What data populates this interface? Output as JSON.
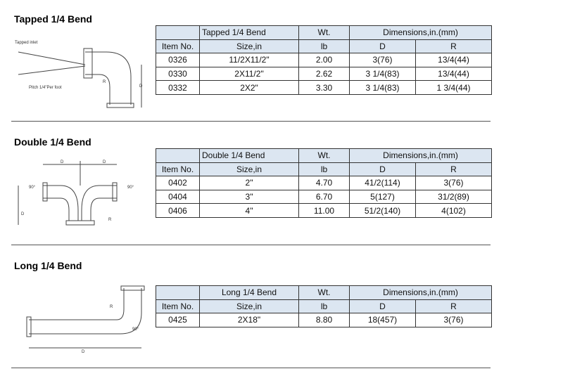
{
  "sections": [
    {
      "title": "Tapped 1/4 Bend",
      "drawing_labels": [
        "Tapped inlet",
        "Pitch 1/4\"Per foot",
        "R",
        "D"
      ],
      "table": {
        "header": [
          "Tapped 1/4 Bend",
          "Wt.",
          "Dimensions,in.(mm)"
        ],
        "subheader": [
          "Item No.",
          "Size,in",
          "lb",
          "D",
          "R"
        ],
        "rows": [
          [
            "0326",
            "11/2X11/2\"",
            "2.00",
            "3(76)",
            "13/4(44)"
          ],
          [
            "0330",
            "2X11/2\"",
            "2.62",
            "3 1/4(83)",
            "13/4(44)"
          ],
          [
            "0332",
            "2X2\"",
            "3.30",
            "3 1/4(83)",
            "1 3/4(44)"
          ]
        ]
      }
    },
    {
      "title": "Double 1/4 Bend",
      "drawing_labels": [
        "D",
        "D",
        "90°",
        "90°",
        "D",
        "R"
      ],
      "table": {
        "header": [
          "Double 1/4 Bend",
          "Wt.",
          "Dimensions,in.(mm)"
        ],
        "subheader": [
          "Item No.",
          "Size,in",
          "lb",
          "D",
          "R"
        ],
        "rows": [
          [
            "0402",
            "2\"",
            "4.70",
            "41/2(114)",
            "3(76)"
          ],
          [
            "0404",
            "3\"",
            "6.70",
            "5(127)",
            "31/2(89)"
          ],
          [
            "0406",
            "4\"",
            "11.00",
            "51/2(140)",
            "4(102)"
          ]
        ]
      }
    },
    {
      "title": "Long 1/4 Bend",
      "drawing_labels": [
        "R",
        "90°",
        "D"
      ],
      "table": {
        "header": [
          "Long 1/4 Bend",
          "Wt.",
          "Dimensions,in.(mm)"
        ],
        "subheader": [
          "Item No.",
          "Size,in",
          "lb",
          "D",
          "R"
        ],
        "rows": [
          [
            "0425",
            "2X18\"",
            "8.80",
            "18(457)",
            "3(76)"
          ]
        ]
      }
    }
  ]
}
